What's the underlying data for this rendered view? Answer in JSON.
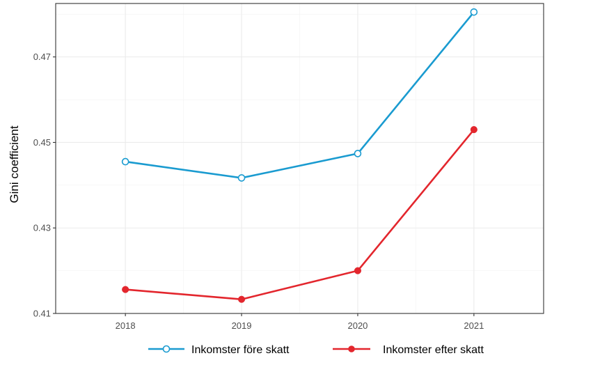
{
  "chart_data": {
    "type": "line",
    "title": "",
    "xlabel": "",
    "ylabel": "Gini coefficient",
    "x": [
      2018,
      2019,
      2020,
      2021
    ],
    "xlim": [
      2017.4,
      2021.6
    ],
    "ylim": [
      0.41,
      0.4825
    ],
    "yticks": [
      0.41,
      0.43,
      0.45,
      0.47
    ],
    "ytick_labels": [
      "0.41",
      "0.43",
      "0.45",
      "0.47"
    ],
    "xtick_labels": [
      "2018",
      "2019",
      "2020",
      "2021"
    ],
    "grid": true,
    "legend_position": "bottom",
    "series": [
      {
        "name": "Inkomster före skatt",
        "values": [
          0.4455,
          0.4417,
          0.4474,
          0.4805
        ],
        "color": "#1a9bd0",
        "marker": "open-circle"
      },
      {
        "name": "Inkomster efter skatt",
        "values": [
          0.4156,
          0.4133,
          0.42,
          0.453
        ],
        "color": "#e3262d",
        "marker": "filled-circle"
      }
    ]
  }
}
